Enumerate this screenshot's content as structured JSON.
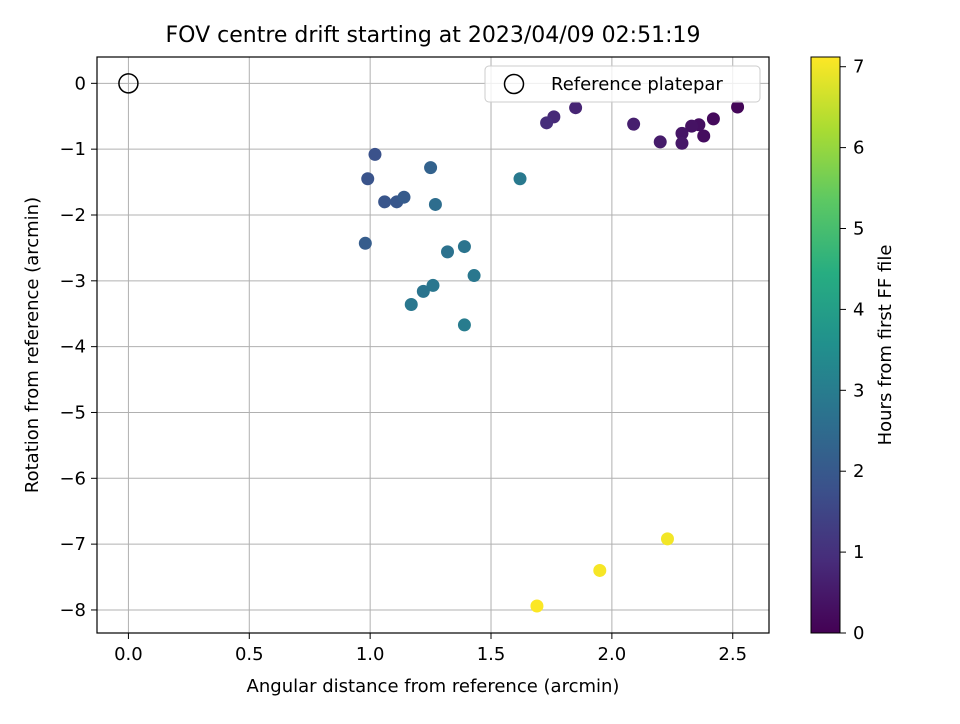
{
  "chart_data": {
    "type": "scatter",
    "title": "FOV centre drift starting at 2023/04/09 02:51:19",
    "xlabel": "Angular distance from reference (arcmin)",
    "ylabel": "Rotation from reference (arcmin)",
    "xlim": [
      -0.13,
      2.65
    ],
    "ylim": [
      -8.35,
      0.4
    ],
    "xticks": [
      0.0,
      0.5,
      1.0,
      1.5,
      2.0,
      2.5
    ],
    "xtick_labels": [
      "0.0",
      "0.5",
      "1.0",
      "1.5",
      "2.0",
      "2.5"
    ],
    "yticks": [
      0,
      -1,
      -2,
      -3,
      -4,
      -5,
      -6,
      -7,
      -8
    ],
    "ytick_labels": [
      "0",
      "−1",
      "−2",
      "−3",
      "−4",
      "−5",
      "−6",
      "−7",
      "−8"
    ],
    "grid": true,
    "legend": {
      "position": "upper right",
      "entries": [
        "Reference platepar"
      ]
    },
    "reference_point": {
      "x": 0.0,
      "y": 0.0,
      "label": "Reference platepar"
    },
    "colorbar": {
      "label": "Hours from first FF file",
      "colormap": "viridis",
      "range": [
        0,
        7.12
      ],
      "ticks": [
        0,
        1,
        2,
        3,
        4,
        5,
        6,
        7
      ],
      "tick_labels": [
        "0",
        "1",
        "2",
        "3",
        "4",
        "5",
        "6",
        "7"
      ]
    },
    "points": [
      {
        "x": 2.52,
        "y": -0.36,
        "hours": 0.1
      },
      {
        "x": 2.42,
        "y": -0.54,
        "hours": 0.18
      },
      {
        "x": 2.38,
        "y": -0.8,
        "hours": 0.25
      },
      {
        "x": 2.36,
        "y": -0.63,
        "hours": 0.3
      },
      {
        "x": 2.33,
        "y": -0.65,
        "hours": 0.35
      },
      {
        "x": 2.29,
        "y": -0.76,
        "hours": 0.42
      },
      {
        "x": 2.29,
        "y": -0.91,
        "hours": 0.48
      },
      {
        "x": 2.2,
        "y": -0.89,
        "hours": 0.55
      },
      {
        "x": 2.09,
        "y": -0.62,
        "hours": 0.62
      },
      {
        "x": 1.85,
        "y": -0.37,
        "hours": 0.75
      },
      {
        "x": 1.76,
        "y": -0.51,
        "hours": 0.85
      },
      {
        "x": 1.73,
        "y": -0.6,
        "hours": 0.95
      },
      {
        "x": 1.02,
        "y": -1.08,
        "hours": 1.8
      },
      {
        "x": 0.99,
        "y": -1.45,
        "hours": 1.85
      },
      {
        "x": 1.06,
        "y": -1.8,
        "hours": 1.9
      },
      {
        "x": 1.11,
        "y": -1.8,
        "hours": 1.95
      },
      {
        "x": 1.14,
        "y": -1.73,
        "hours": 2.05
      },
      {
        "x": 0.98,
        "y": -2.43,
        "hours": 2.1
      },
      {
        "x": 1.25,
        "y": -1.28,
        "hours": 2.25
      },
      {
        "x": 1.27,
        "y": -1.84,
        "hours": 2.55
      },
      {
        "x": 1.62,
        "y": -1.45,
        "hours": 2.9
      },
      {
        "x": 1.32,
        "y": -2.56,
        "hours": 2.7
      },
      {
        "x": 1.39,
        "y": -2.48,
        "hours": 2.75
      },
      {
        "x": 1.43,
        "y": -2.92,
        "hours": 2.85
      },
      {
        "x": 1.26,
        "y": -3.07,
        "hours": 2.8
      },
      {
        "x": 1.22,
        "y": -3.16,
        "hours": 2.75
      },
      {
        "x": 1.17,
        "y": -3.36,
        "hours": 2.85
      },
      {
        "x": 1.39,
        "y": -3.67,
        "hours": 3.0
      },
      {
        "x": 2.23,
        "y": -6.92,
        "hours": 7.0
      },
      {
        "x": 1.95,
        "y": -7.4,
        "hours": 7.05
      },
      {
        "x": 1.69,
        "y": -7.94,
        "hours": 7.1
      }
    ]
  }
}
